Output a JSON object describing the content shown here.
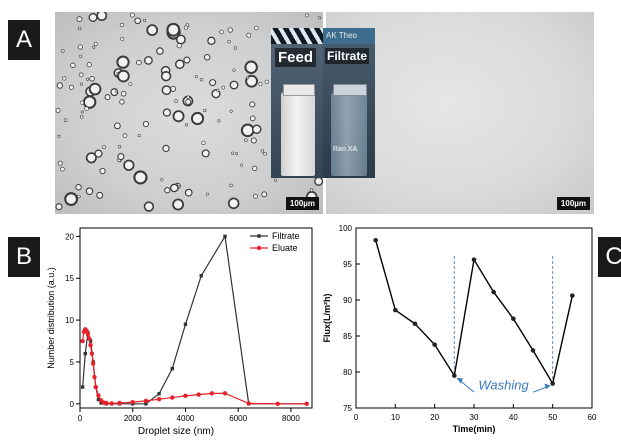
{
  "panels": {
    "a": "A",
    "b": "B",
    "c": "C"
  },
  "micrographs": {
    "left_scale": "100µm",
    "right_scale": "100µm",
    "inset_feed_label": "Feed",
    "inset_filtrate_label": "Filtrate",
    "inset_sign_text": "AK Theo",
    "inset_bottle_text": "Ran  XA"
  },
  "colors": {
    "filtrate": "#333333",
    "eluate": "#e8202a",
    "washing": "#3a7bbf",
    "dashed": "#5a8fc7"
  },
  "chart_data": [
    {
      "type": "line",
      "panel": "B",
      "xlabel": "Droplet size (nm)",
      "ylabel": "Number distribution (a.u.)",
      "xlim": [
        0,
        8800
      ],
      "ylim": [
        -0.5,
        21
      ],
      "xticks": [
        0,
        2000,
        4000,
        6000,
        8000
      ],
      "yticks": [
        0,
        5,
        10,
        15,
        20
      ],
      "legend_position": "top-right",
      "series": [
        {
          "name": "Filtrate",
          "x": [
            100,
            200,
            300,
            400,
            500,
            600,
            700,
            800,
            1000,
            1200,
            1500,
            2000,
            2500,
            3000,
            3500,
            4000,
            4600,
            5500,
            6400,
            8600
          ],
          "y": [
            2,
            6,
            8.5,
            7.5,
            5,
            2,
            0.5,
            0.1,
            0,
            0,
            0,
            0,
            0,
            1.2,
            4.2,
            9.5,
            15.3,
            20,
            0,
            0
          ]
        },
        {
          "name": "Eluate",
          "x": [
            100,
            150,
            200,
            250,
            300,
            350,
            400,
            450,
            500,
            550,
            600,
            700,
            800,
            900,
            1000,
            1200,
            1500,
            2000,
            2500,
            3000,
            3500,
            4000,
            4500,
            5000,
            5500,
            6400,
            7500,
            8600
          ],
          "y": [
            7.5,
            8.6,
            8.9,
            8.7,
            8.3,
            7.8,
            7.0,
            6.0,
            4.8,
            3.2,
            2.0,
            1.0,
            0.4,
            0.15,
            0.1,
            0.05,
            0.1,
            0.2,
            0.35,
            0.55,
            0.75,
            0.95,
            1.1,
            1.25,
            1.25,
            0.05,
            0,
            0
          ]
        }
      ]
    },
    {
      "type": "line",
      "panel": "C",
      "xlabel": "Time(min)",
      "ylabel": "Flux(L/m²h)",
      "xlim": [
        0,
        60
      ],
      "ylim": [
        75,
        100
      ],
      "xticks": [
        0,
        10,
        20,
        30,
        40,
        50,
        60
      ],
      "yticks": [
        75,
        80,
        85,
        90,
        95,
        100
      ],
      "annotation": "Washing",
      "washing_times": [
        25,
        50
      ],
      "series": [
        {
          "x": [
            5,
            10,
            15,
            20,
            25,
            30,
            35,
            40,
            45,
            50,
            55
          ],
          "y": [
            98.3,
            88.6,
            86.7,
            83.8,
            79.5,
            95.6,
            91.1,
            87.4,
            83.0,
            78.4,
            90.6
          ]
        }
      ]
    }
  ]
}
